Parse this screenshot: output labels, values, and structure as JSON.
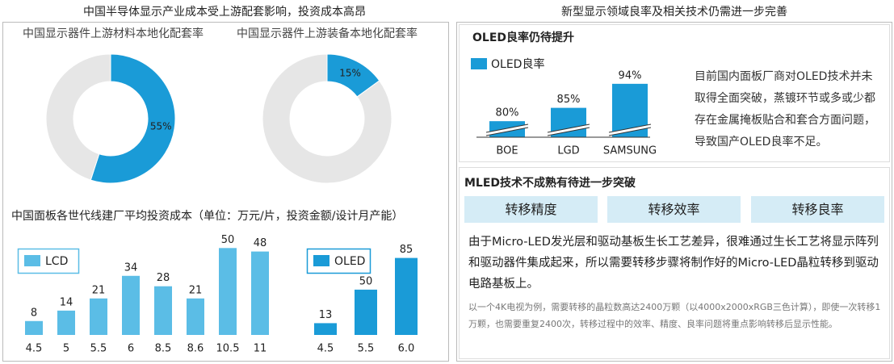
{
  "left_title": "中国半导体显示产业成本受上游配套影响，投资成本高昂",
  "right_title": "新型显示领域良率及相关技术仍需进一步完善",
  "bar_section_title": "中国面板各世代线建厂平均投资成本（单位：万元/片，投资金额/设计月产能）",
  "chart_data": [
    {
      "type": "pie",
      "title": "中国显示器件上游材料本地化配套率",
      "values": [
        55,
        45
      ],
      "value_labels": [
        "55%",
        null
      ],
      "colors": [
        "#1a9bd7",
        "#e6e6e6"
      ]
    },
    {
      "type": "pie",
      "title": "中国显示器件上游装备本地化配套率",
      "values": [
        15,
        85
      ],
      "value_labels": [
        "15%",
        null
      ],
      "colors": [
        "#1a9bd7",
        "#e6e6e6"
      ]
    },
    {
      "type": "bar",
      "categories": [
        "4.5",
        "5",
        "5.5",
        "6",
        "8.5",
        "8.6",
        "10.5",
        "11"
      ],
      "series": [
        {
          "name": "LCD",
          "color": "#5bbde6",
          "values": [
            8,
            14,
            21,
            34,
            28,
            21,
            50,
            48
          ]
        }
      ],
      "ylim": [
        0,
        52
      ]
    },
    {
      "type": "bar",
      "categories": [
        "4.5",
        "5.5",
        "6.0"
      ],
      "series": [
        {
          "name": "OLED",
          "color": "#1a9bd7",
          "values": [
            13,
            50,
            85
          ]
        }
      ],
      "ylim": [
        0,
        98
      ]
    },
    {
      "type": "bar",
      "categories": [
        "BOE",
        "LGD",
        "SAMSUNG"
      ],
      "series": [
        {
          "name": "OLED良率",
          "color": "#1a9bd7",
          "values": [
            80,
            85,
            94
          ],
          "value_labels": [
            "80%",
            "85%",
            "94%"
          ]
        }
      ],
      "ylim": [
        74,
        100
      ],
      "axis_break": true
    }
  ],
  "oled_section": {
    "title": "OLED良率仍待提升",
    "text": "目前国内面板厂商对OLED技术并未取得全面突破，蒸镀环节或多或少都存在金属掩板贴合和套合方面问题，导致国产OLED良率不足。"
  },
  "mled_section": {
    "title": "MLED技术不成熟有待进一步突破",
    "tags": [
      "转移精度",
      "转移效率",
      "转移良率"
    ],
    "text": "由于Micro-LED发光层和驱动基板生长工艺差异，很难通过生长工艺将显示阵列和驱动器件集成起来，所以需要转移步骤将制作好的Micro-LED晶粒转移到驱动电路基板上。",
    "note": "以一个4K电视为例，需要转移的晶粒数高达2400万颗（以4000x2000xRGB三色计算），即使一次转移1万颗，也需要重复2400次，转移过程中的效率、精度、良率问题将重点影响转移后显示性能。"
  }
}
